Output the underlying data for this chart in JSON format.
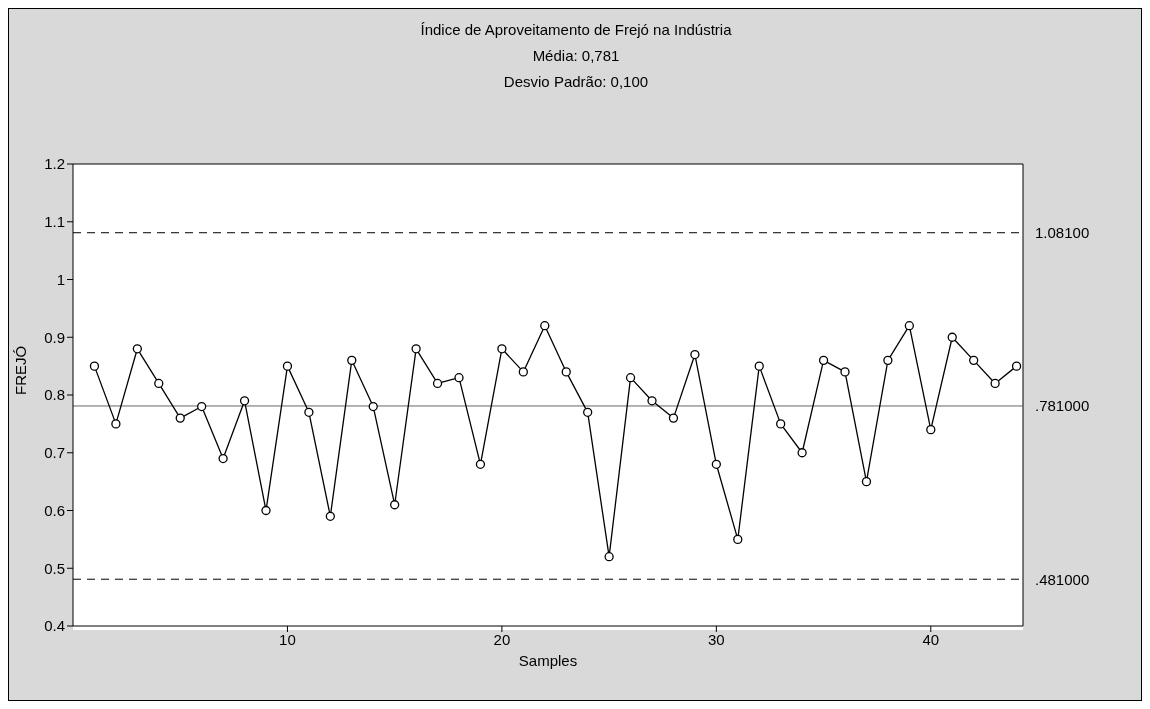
{
  "chart_data": {
    "type": "line",
    "title": "Índice de Aproveitamento de Frejó na Indústria",
    "subtitle": "Média: 0,781",
    "annotations": [
      "Desvio Padrão: 0,100"
    ],
    "xlabel": "Samples",
    "ylabel": "FREJÓ",
    "x": [
      1,
      2,
      3,
      4,
      5,
      6,
      7,
      8,
      9,
      10,
      11,
      12,
      13,
      14,
      15,
      16,
      17,
      18,
      19,
      20,
      21,
      22,
      23,
      24,
      25,
      26,
      27,
      28,
      29,
      30,
      31,
      32,
      33,
      34,
      35,
      36,
      37,
      38,
      39,
      40,
      41,
      42,
      43,
      44
    ],
    "series": [
      {
        "color": "#000000",
        "values": [
          0.85,
          0.75,
          0.88,
          0.82,
          0.76,
          0.78,
          0.69,
          0.79,
          0.6,
          0.85,
          0.77,
          0.59,
          0.86,
          0.78,
          0.61,
          0.88,
          0.82,
          0.83,
          0.68,
          0.88,
          0.84,
          0.92,
          0.84,
          0.77,
          0.52,
          0.83,
          0.79,
          0.76,
          0.87,
          0.68,
          0.55,
          0.85,
          0.75,
          0.7,
          0.86,
          0.84,
          0.65,
          0.86,
          0.92,
          0.74,
          0.9,
          0.86,
          0.82,
          0.85
        ]
      }
    ],
    "xlim": [
      0,
      44.3
    ],
    "xticks": [
      10,
      20,
      30,
      40
    ],
    "ylim": [
      0.4,
      1.2
    ],
    "yticks": [
      0.4,
      0.5,
      0.6,
      0.7,
      0.8,
      0.9,
      1,
      1.1,
      1.2
    ],
    "ref_lines": [
      {
        "axis": "y",
        "value": 1.081,
        "label": "1.08100",
        "color": "#000000",
        "line_style": "dashed"
      },
      {
        "axis": "y",
        "value": 0.781,
        "label": ".781000",
        "color": "#666666",
        "line_style": "solid"
      },
      {
        "axis": "y",
        "value": 0.481,
        "label": ".481000",
        "color": "#000000",
        "line_style": "dashed"
      }
    ],
    "marker": "circle",
    "line_style": "solid"
  }
}
